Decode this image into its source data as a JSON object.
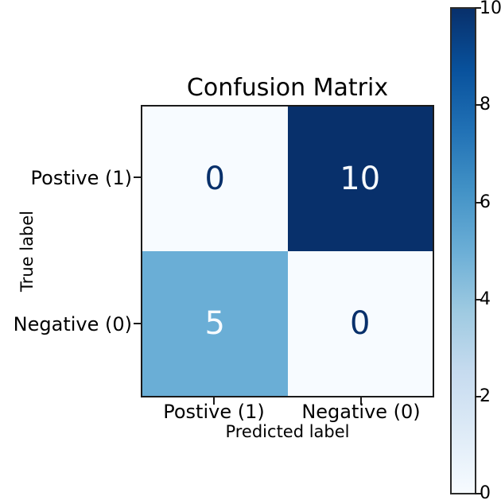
{
  "chart_data": {
    "type": "heatmap",
    "title": "Confusion Matrix",
    "xlabel": "Predicted label",
    "ylabel": "True label",
    "col_labels": [
      "Postive (1)",
      "Negative (0)"
    ],
    "row_labels": [
      "Postive (1)",
      "Negative (0)"
    ],
    "matrix": [
      [
        0,
        10
      ],
      [
        5,
        0
      ]
    ],
    "colormap": "Blues",
    "value_range": [
      0,
      10
    ],
    "cells": [
      {
        "row": "Postive (1)",
        "col": "Postive (1)",
        "value": "0",
        "bg": "#f7fbff",
        "fg": "#08306b"
      },
      {
        "row": "Postive (1)",
        "col": "Negative (0)",
        "value": "10",
        "bg": "#08306b",
        "fg": "#f7fbff"
      },
      {
        "row": "Negative (0)",
        "col": "Postive (1)",
        "value": "5",
        "bg": "#6aaed6",
        "fg": "#f7fbff"
      },
      {
        "row": "Negative (0)",
        "col": "Negative (0)",
        "value": "0",
        "bg": "#f7fbff",
        "fg": "#08306b"
      }
    ],
    "colorbar": {
      "min": 0,
      "max": 10,
      "tick_labels": [
        "10",
        "8",
        "6",
        "4",
        "2",
        "0"
      ]
    },
    "colors": {
      "cmap_low": "#f7fbff",
      "cmap_mid": "#6aaed6",
      "cmap_high": "#08306b",
      "axis": "#1a1a1a",
      "background": "#ffffff"
    },
    "legend": "colorbar-right",
    "grid": false
  }
}
